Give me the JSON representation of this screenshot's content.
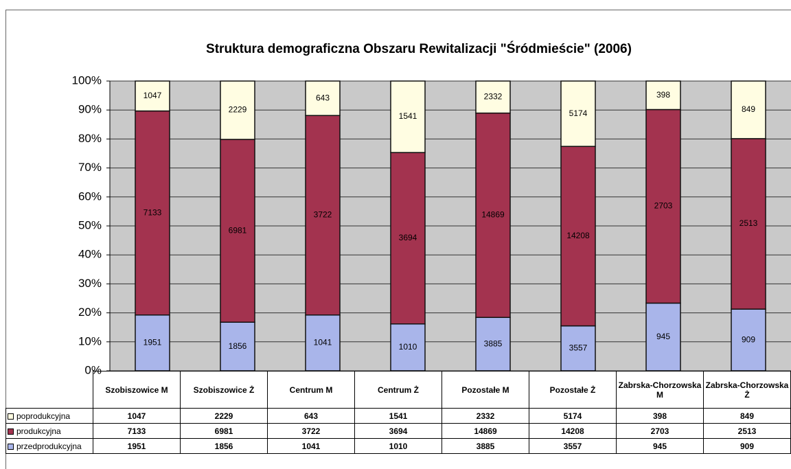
{
  "chart_data": {
    "type": "stacked-percent-bar",
    "title": "Struktura demograficzna Obszaru Rewitalizacji \"Śródmieście\" (2006)",
    "categories": [
      "Szobiszowice M",
      "Szobiszowice Ż",
      "Centrum M",
      "Centrum Ż",
      "Pozostałe M",
      "Pozostałe Ż",
      "Zabrska-Chorzowska M",
      "Zabrska-Chorzowska Ż"
    ],
    "series": [
      {
        "name": "poprodukcyjna",
        "color": "#fffde2",
        "values": [
          1047,
          2229,
          643,
          1541,
          2332,
          5174,
          398,
          849
        ]
      },
      {
        "name": "produkcyjna",
        "color": "#a3334f",
        "values": [
          7133,
          6981,
          3722,
          3694,
          14869,
          14208,
          2703,
          2513
        ]
      },
      {
        "name": "przedprodukcyjna",
        "color": "#a9b5ea",
        "values": [
          1951,
          1856,
          1041,
          1010,
          3885,
          3557,
          945,
          909
        ]
      }
    ],
    "ylim": [
      0,
      100
    ],
    "yticks": [
      {
        "value": 0,
        "label": "0%"
      },
      {
        "value": 10,
        "label": "10%"
      },
      {
        "value": 20,
        "label": "20%"
      },
      {
        "value": 30,
        "label": "30%"
      },
      {
        "value": 40,
        "label": "40%"
      },
      {
        "value": 50,
        "label": "50%"
      },
      {
        "value": 60,
        "label": "60%"
      },
      {
        "value": 70,
        "label": "70%"
      },
      {
        "value": 80,
        "label": "80%"
      },
      {
        "value": 90,
        "label": "90%"
      },
      {
        "value": 100,
        "label": "100%"
      }
    ],
    "grid": true
  }
}
